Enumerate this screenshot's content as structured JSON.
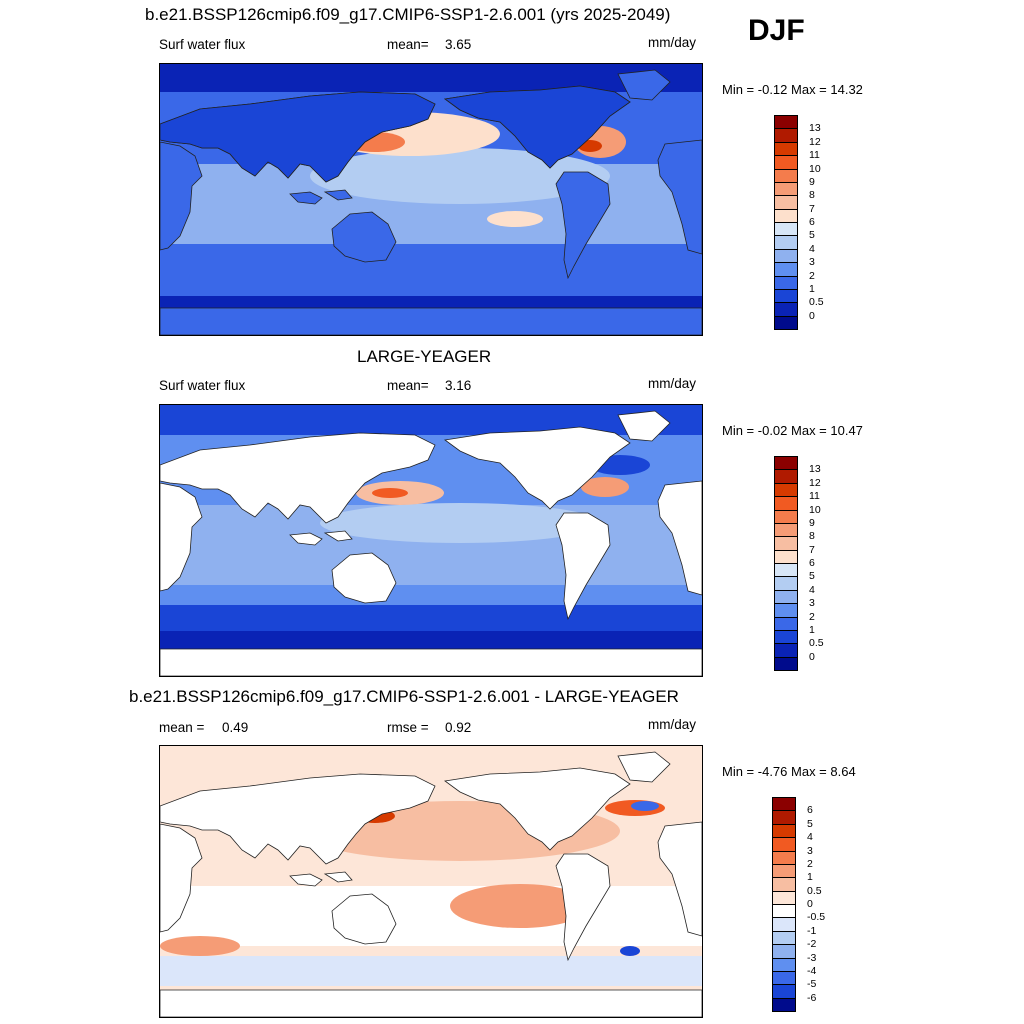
{
  "season": "DJF",
  "panels": [
    {
      "id": "model",
      "title": "b.e21.BSSP126cmip6.f09_g17.CMIP6-SSP1-2.6.001 (yrs 2025-2049)",
      "left_label": "Surf water flux",
      "stat_label": "mean=",
      "stat_value": "3.65",
      "stat2_label": "",
      "stat2_value": "",
      "units": "mm/day",
      "minmax": "Min =  -0.12 Max =  14.32",
      "land_masked": false,
      "colorbar_labels": [
        "13",
        "12",
        "11",
        "10",
        "9",
        "8",
        "7",
        "6",
        "5",
        "4",
        "3",
        "2",
        "1",
        "0.5",
        "0"
      ],
      "colorbar_colors": [
        "#8b0000",
        "#b01a00",
        "#d63a00",
        "#f15a22",
        "#f47c4c",
        "#f59c76",
        "#f7bea2",
        "#fde0cc",
        "#d7e6f7",
        "#b3cdf2",
        "#8fb1ef",
        "#5f8ff0",
        "#3a68e8",
        "#1a45d6",
        "#0a23b5",
        "#000b8c"
      ]
    },
    {
      "id": "obs",
      "title": "LARGE-YEAGER",
      "left_label": "Surf water flux",
      "stat_label": "mean=",
      "stat_value": "3.16",
      "stat2_label": "",
      "stat2_value": "",
      "units": "mm/day",
      "minmax": "Min =  -0.02 Max =  10.47",
      "land_masked": true,
      "colorbar_labels": [
        "13",
        "12",
        "11",
        "10",
        "9",
        "8",
        "7",
        "6",
        "5",
        "4",
        "3",
        "2",
        "1",
        "0.5",
        "0"
      ],
      "colorbar_colors": [
        "#8b0000",
        "#b01a00",
        "#d63a00",
        "#f15a22",
        "#f47c4c",
        "#f59c76",
        "#f7bea2",
        "#fde0cc",
        "#d7e6f7",
        "#b3cdf2",
        "#8fb1ef",
        "#5f8ff0",
        "#3a68e8",
        "#1a45d6",
        "#0a23b5",
        "#000b8c"
      ]
    },
    {
      "id": "diff",
      "title": "b.e21.BSSP126cmip6.f09_g17.CMIP6-SSP1-2.6.001 - LARGE-YEAGER",
      "left_label": "",
      "stat_label": "mean =",
      "stat_value": "0.49",
      "stat2_label": "rmse =",
      "stat2_value": "0.92",
      "units": "mm/day",
      "minmax": "Min =  -4.76 Max =   8.64",
      "land_masked": true,
      "colorbar_labels": [
        "6",
        "5",
        "4",
        "3",
        "2",
        "1",
        "0.5",
        "0",
        "-0.5",
        "-1",
        "-2",
        "-3",
        "-4",
        "-5",
        "-6"
      ],
      "colorbar_colors": [
        "#8b0000",
        "#b01a00",
        "#d63a00",
        "#f15a22",
        "#f47c4c",
        "#f59c76",
        "#f7bea2",
        "#fde6d8",
        "#ffffff",
        "#dbe6fa",
        "#b3cdf2",
        "#8fb1ef",
        "#5f8ff0",
        "#3a68e8",
        "#1a45d6",
        "#000b8c"
      ]
    }
  ]
}
